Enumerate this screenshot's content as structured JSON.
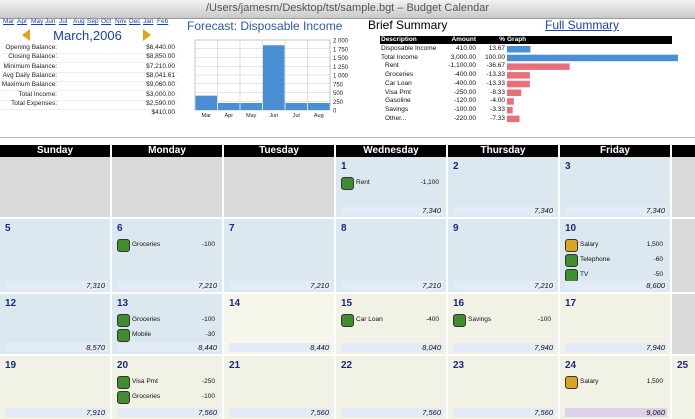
{
  "window": {
    "title": "/Users/jamesm/Desktop/tst/sample.bgt – Budget Calendar"
  },
  "nav": {
    "months": [
      "Mar",
      "Apr",
      "May",
      "Jun",
      "Jul",
      "Aug",
      "Sep",
      "Oct",
      "Nov",
      "Dec",
      "Jan",
      "Feb"
    ],
    "current": "March,2006"
  },
  "balances": [
    {
      "label": "Opening Balance:",
      "value": "$6,440.00"
    },
    {
      "label": "Closing Balance:",
      "value": "$8,850.00"
    },
    {
      "label": "Minimum Balance:",
      "value": "$7,210.00"
    },
    {
      "label": "Avg Daily Balance:",
      "value": "$8,041.61"
    },
    {
      "label": "Maximum Balance:",
      "value": "$9,060.00"
    },
    {
      "label": "Total Income:",
      "value": "$3,000.00"
    },
    {
      "label": "Total Expenses:",
      "value": "$2,590.00"
    }
  ],
  "net": "$410.00",
  "chart_data": {
    "type": "bar",
    "title": "Forecast: Disposable Income",
    "categories": [
      "Mar",
      "Apr",
      "May",
      "Jun",
      "Jul",
      "Aug"
    ],
    "values": [
      410,
      200,
      200,
      1850,
      200,
      200
    ],
    "color": "#4a8fd4",
    "ylim": [
      0,
      2000
    ],
    "yticks": [
      0,
      250,
      500,
      750,
      {
        "value": 1000,
        "label": "1 000"
      },
      {
        "value": 1250,
        "label": "1 250"
      },
      {
        "value": 1500,
        "label": "1 500"
      },
      {
        "value": 1750,
        "label": "1 750"
      },
      {
        "value": 2000,
        "label": "2 000"
      }
    ],
    "grid": true
  },
  "summary": {
    "title": "Brief Summary",
    "link": "Full Summary",
    "columns": [
      "Description",
      "Amount",
      "%",
      "Graph"
    ],
    "positive_color": "#4a8fd4",
    "negative_color": "#e8707a",
    "rows": [
      {
        "description": "Disposable Income",
        "amount": "410.00",
        "pct": {
          "value": 13.67,
          "label": "13.67"
        }
      },
      {
        "description": "Total Income",
        "amount": "3,000.00",
        "pct": {
          "value": 100,
          "label": "100.00"
        }
      },
      {
        "description": "Rent",
        "amount": "-1,100.00",
        "pct": {
          "value": -36.67,
          "label": "-36.67"
        }
      },
      {
        "description": "Groceries",
        "amount": "-400.00",
        "pct": {
          "value": -13.33,
          "label": "-13.33"
        }
      },
      {
        "description": "Car Loan",
        "amount": "-400.00",
        "pct": {
          "value": -13.33,
          "label": "-13.33"
        }
      },
      {
        "description": "Visa Pmt",
        "amount": "-250.00",
        "pct": {
          "value": -8.33,
          "label": "-8.33"
        }
      },
      {
        "description": "Gasoline",
        "amount": "-120.00",
        "pct": {
          "value": -4,
          "label": "-4.00"
        }
      },
      {
        "description": "Savings",
        "amount": "-100.00",
        "pct": {
          "value": -3.33,
          "label": "-3.33"
        }
      },
      {
        "description": "Other...",
        "amount": "-220.00",
        "pct": {
          "value": -7.33,
          "label": "-7.33"
        }
      }
    ]
  },
  "calendar": {
    "days": [
      "Sunday",
      "Monday",
      "Tuesday",
      "Wednesday",
      "Thursday",
      "Friday"
    ],
    "weeks": [
      [
        null,
        null,
        null,
        {
          "date": 1,
          "color": "#dbe8ef",
          "entries": [
            {
              "name": "Rent",
              "amount": "-1,100"
            }
          ],
          "balance": "7,340"
        },
        {
          "date": 2,
          "color": "#dbe8ef",
          "balance": "7,340"
        },
        {
          "date": 3,
          "color": "#dbe8ef",
          "balance": "7,340"
        },
        null
      ],
      [
        {
          "date": 5,
          "color": "#dbe8ef",
          "balance": "7,310"
        },
        {
          "date": 6,
          "color": "#dbe8ef",
          "entries": [
            {
              "name": "Groceries",
              "amount": "-100"
            }
          ],
          "balance": "7,210"
        },
        {
          "date": 7,
          "color": "#dbe8ef",
          "balance": "7,210"
        },
        {
          "date": 8,
          "color": "#dbe8ef",
          "balance": "7,210"
        },
        {
          "date": 9,
          "color": "#dbe8ef",
          "balance": "7,210"
        },
        {
          "date": 10,
          "color": "#dbe8ef",
          "entries": [
            {
              "name": "Salary",
              "amount": "1,500"
            },
            {
              "name": "Telephone",
              "amount": "-60"
            },
            {
              "name": "TV",
              "amount": "-50"
            }
          ],
          "balance": "8,600"
        },
        null
      ],
      [
        {
          "date": 12,
          "color": "#dbe8ef",
          "balance": "8,570"
        },
        {
          "date": 13,
          "color": "#dbe8ef",
          "entries": [
            {
              "name": "Groceries",
              "amount": "-100"
            },
            {
              "name": "Mobile",
              "amount": "-30"
            }
          ],
          "balance": "8,440"
        },
        {
          "date": 14,
          "color": "#f6f6ea",
          "balance": "8,440"
        },
        {
          "date": 15,
          "color": "#f1f1e6",
          "entries": [
            {
              "name": "Car Loan",
              "amount": "-400"
            }
          ],
          "balance": "8,040"
        },
        {
          "date": 16,
          "color": "#f1f1e6",
          "entries": [
            {
              "name": "Savings",
              "amount": "-100"
            }
          ],
          "balance": "7,940"
        },
        {
          "date": 17,
          "color": "#f1f1e6",
          "balance": "7,940"
        },
        null
      ],
      [
        {
          "date": 19,
          "color": "#f1f1e6",
          "balance": "7,910"
        },
        {
          "date": 20,
          "color": "#f1f1e6",
          "entries": [
            {
              "name": "Visa Pmt",
              "amount": "-250"
            },
            {
              "name": "Groceries",
              "amount": "-100"
            }
          ],
          "balance": "7,560"
        },
        {
          "date": 21,
          "color": "#f1f1e6",
          "balance": "7,560"
        },
        {
          "date": 22,
          "color": "#f1f1e6",
          "balance": "7,560"
        },
        {
          "date": 23,
          "color": "#f1f1e6",
          "balance": "7,560"
        },
        {
          "date": 24,
          "color": "#f1f1e6",
          "entries": [
            {
              "name": "Salary",
              "amount": "1,500"
            }
          ],
          "balance": "9,060",
          "band_color": "#ddd2ea"
        },
        {
          "date": 25,
          "color": "#f1f1e6"
        }
      ]
    ]
  }
}
